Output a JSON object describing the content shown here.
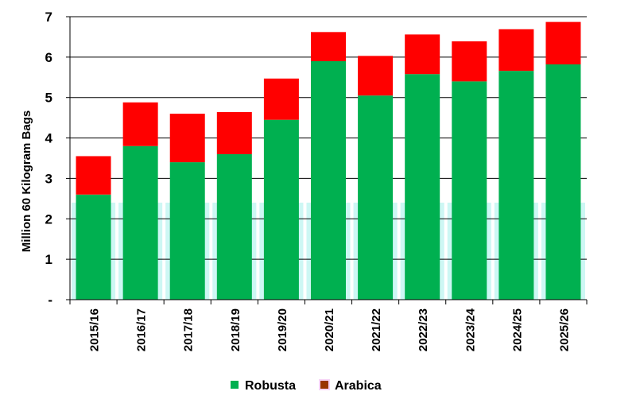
{
  "chart_data": {
    "type": "bar",
    "stacked": true,
    "categories": [
      "2015/16",
      "2016/17",
      "2017/18",
      "2018/19",
      "2019/20",
      "2020/21",
      "2021/22",
      "2022/23",
      "2023/24",
      "2024/25",
      "2025/26"
    ],
    "series": [
      {
        "name": "Robusta",
        "color": "#00b050",
        "values": [
          2.6,
          3.8,
          3.4,
          3.6,
          4.45,
          5.9,
          5.05,
          5.58,
          5.4,
          5.66,
          5.82
        ]
      },
      {
        "name": "Arabica",
        "color": "#ff0000",
        "values": [
          0.95,
          1.08,
          1.2,
          1.04,
          1.02,
          0.72,
          0.98,
          0.98,
          0.99,
          1.03,
          1.05
        ]
      }
    ],
    "legend_swatch_colors": {
      "Robusta": "#00b050",
      "Arabica": "#993300"
    },
    "title": "",
    "xlabel": "",
    "ylabel": "Million 60 Kilogram Bags",
    "ylim": [
      0,
      7
    ],
    "yticks": [
      0,
      1,
      2,
      3,
      4,
      5,
      6,
      7
    ],
    "ytick_labels": [
      "-",
      "1",
      "2",
      "3",
      "4",
      "5",
      "6",
      "7"
    ],
    "grid": true,
    "legend_position": "bottom"
  }
}
